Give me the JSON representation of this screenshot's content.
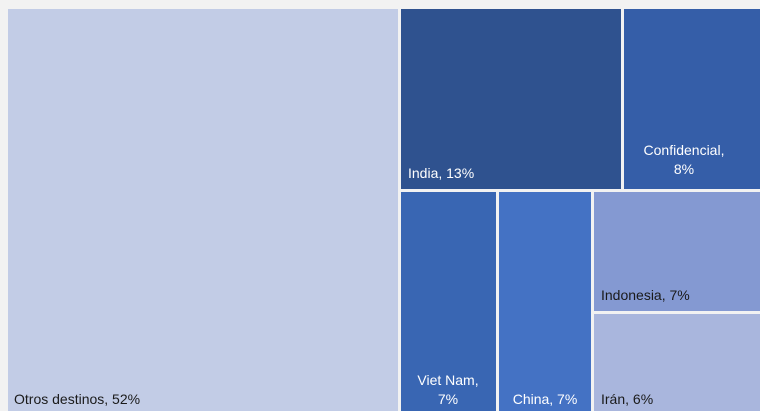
{
  "chart_data": {
    "type": "treemap",
    "unit": "%",
    "nodes": [
      {
        "name": "Otros destinos",
        "value": 52,
        "label": "Otros destinos, 52%",
        "color": "#c2cce6",
        "text_color": "#1a1a1a"
      },
      {
        "name": "India",
        "value": 13,
        "label": "India, 13%",
        "color": "#2f528f",
        "text_color": "#ffffff"
      },
      {
        "name": "Confidencial",
        "value": 8,
        "label": "Confidencial, 8%",
        "color": "#355ea8",
        "text_color": "#ffffff"
      },
      {
        "name": "Viet Nam",
        "value": 7,
        "label": "Viet Nam, 7%",
        "color": "#3966b3",
        "text_color": "#ffffff"
      },
      {
        "name": "China",
        "value": 7,
        "label": "China, 7%",
        "color": "#4472c4",
        "text_color": "#ffffff"
      },
      {
        "name": "Indonesia",
        "value": 7,
        "label": "Indonesia, 7%",
        "color": "#8499d2",
        "text_color": "#1a1a1a"
      },
      {
        "name": "Irán",
        "value": 6,
        "label": "Irán, 6%",
        "color": "#a9b6dd",
        "text_color": "#1a1a1a"
      }
    ],
    "legend": "none"
  }
}
